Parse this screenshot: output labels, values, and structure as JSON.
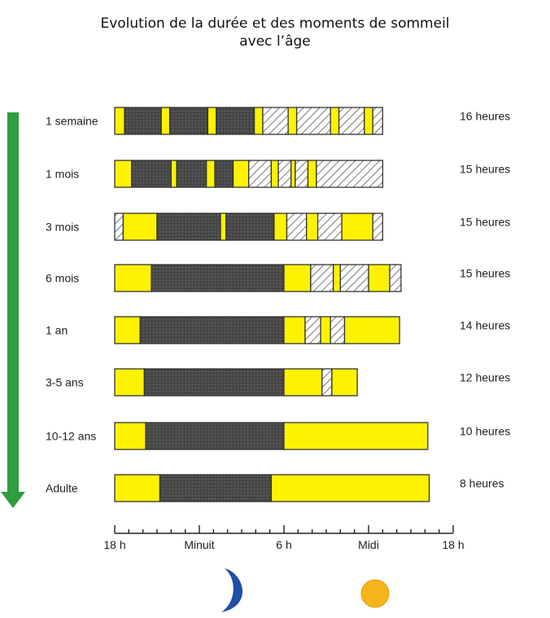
{
  "title": {
    "line1": "Evolution de la durée et des moments de sommeil",
    "line2": "avec l’âge"
  },
  "colors": {
    "night_sleep": "#4a4a4a",
    "awake": "#fff200",
    "nap": "hatched",
    "arrow": "#2e9e3e",
    "moon": "#1f4fa8",
    "sun": "#f6b31a"
  },
  "icons": {
    "moon": "moon-icon",
    "sun": "sun-icon"
  },
  "chart_data": {
    "type": "bar",
    "orientation": "horizontal-timeline",
    "x_axis": {
      "range_hours": [
        18,
        42
      ],
      "tick_labels": [
        {
          "at": 18,
          "label": "18 h"
        },
        {
          "at": 24,
          "label": "Minuit"
        },
        {
          "at": 30,
          "label": "6 h"
        },
        {
          "at": 36,
          "label": "Midi"
        },
        {
          "at": 42,
          "label": "18 h"
        }
      ],
      "minor_tick_every_hours": 1
    },
    "legend_states": [
      "sleep",
      "awake",
      "nap"
    ],
    "rows": [
      {
        "label": "1 semaine",
        "total": "16 heures",
        "segments": [
          {
            "s": "awake",
            "start": 18.0,
            "end": 18.7
          },
          {
            "s": "sleep",
            "start": 18.7,
            "end": 21.3
          },
          {
            "s": "awake",
            "start": 21.3,
            "end": 21.9
          },
          {
            "s": "sleep",
            "start": 21.9,
            "end": 24.6
          },
          {
            "s": "awake",
            "start": 24.6,
            "end": 25.2
          },
          {
            "s": "sleep",
            "start": 25.2,
            "end": 27.9
          },
          {
            "s": "awake",
            "start": 27.9,
            "end": 28.5
          },
          {
            "s": "nap",
            "start": 28.5,
            "end": 30.3
          },
          {
            "s": "awake",
            "start": 30.3,
            "end": 30.9
          },
          {
            "s": "nap",
            "start": 30.9,
            "end": 33.3
          },
          {
            "s": "awake",
            "start": 33.3,
            "end": 33.9
          },
          {
            "s": "nap",
            "start": 33.9,
            "end": 35.7
          },
          {
            "s": "awake",
            "start": 35.7,
            "end": 36.3
          },
          {
            "s": "nap",
            "start": 36.3,
            "end": 37.0
          }
        ]
      },
      {
        "label": "1 mois",
        "total": "15 heures",
        "segments": [
          {
            "s": "awake",
            "start": 18.0,
            "end": 19.2
          },
          {
            "s": "sleep",
            "start": 19.2,
            "end": 22.0
          },
          {
            "s": "awake",
            "start": 22.0,
            "end": 22.4
          },
          {
            "s": "sleep",
            "start": 22.4,
            "end": 24.5
          },
          {
            "s": "awake",
            "start": 24.5,
            "end": 25.1
          },
          {
            "s": "sleep",
            "start": 25.1,
            "end": 26.4
          },
          {
            "s": "awake",
            "start": 26.4,
            "end": 27.5
          },
          {
            "s": "nap",
            "start": 27.5,
            "end": 29.1
          },
          {
            "s": "awake",
            "start": 29.1,
            "end": 29.6
          },
          {
            "s": "nap",
            "start": 29.6,
            "end": 30.5
          },
          {
            "s": "awake",
            "start": 30.5,
            "end": 30.8
          },
          {
            "s": "nap",
            "start": 30.8,
            "end": 31.7
          },
          {
            "s": "awake",
            "start": 31.7,
            "end": 32.3
          },
          {
            "s": "nap",
            "start": 32.3,
            "end": 37.0
          }
        ]
      },
      {
        "label": "3 mois",
        "total": "15 heures",
        "segments": [
          {
            "s": "nap",
            "start": 18.0,
            "end": 18.6
          },
          {
            "s": "awake",
            "start": 18.6,
            "end": 21.0
          },
          {
            "s": "sleep",
            "start": 21.0,
            "end": 25.5
          },
          {
            "s": "awake",
            "start": 25.5,
            "end": 25.9
          },
          {
            "s": "sleep",
            "start": 25.9,
            "end": 29.3
          },
          {
            "s": "awake",
            "start": 29.3,
            "end": 30.2
          },
          {
            "s": "nap",
            "start": 30.2,
            "end": 31.6
          },
          {
            "s": "awake",
            "start": 31.6,
            "end": 32.4
          },
          {
            "s": "nap",
            "start": 32.4,
            "end": 34.1
          },
          {
            "s": "awake",
            "start": 34.1,
            "end": 36.3
          },
          {
            "s": "nap",
            "start": 36.3,
            "end": 37.0
          }
        ]
      },
      {
        "label": "6 mois",
        "total": "15 heures",
        "segments": [
          {
            "s": "awake",
            "start": 18.0,
            "end": 20.6
          },
          {
            "s": "sleep",
            "start": 20.6,
            "end": 30.0
          },
          {
            "s": "awake",
            "start": 30.0,
            "end": 31.9
          },
          {
            "s": "nap",
            "start": 31.9,
            "end": 33.5
          },
          {
            "s": "awake",
            "start": 33.5,
            "end": 34.0
          },
          {
            "s": "nap",
            "start": 34.0,
            "end": 36.0
          },
          {
            "s": "awake",
            "start": 36.0,
            "end": 37.5
          },
          {
            "s": "nap",
            "start": 37.5,
            "end": 38.3
          }
        ]
      },
      {
        "label": "1 an",
        "total": "14 heures",
        "segments": [
          {
            "s": "awake",
            "start": 18.0,
            "end": 19.8
          },
          {
            "s": "sleep",
            "start": 19.8,
            "end": 30.0
          },
          {
            "s": "awake",
            "start": 30.0,
            "end": 31.5
          },
          {
            "s": "nap",
            "start": 31.5,
            "end": 32.6
          },
          {
            "s": "awake",
            "start": 32.6,
            "end": 33.3
          },
          {
            "s": "nap",
            "start": 33.3,
            "end": 34.3
          },
          {
            "s": "awake",
            "start": 34.3,
            "end": 38.2
          }
        ]
      },
      {
        "label": "3-5 ans",
        "total": "12 heures",
        "segments": [
          {
            "s": "awake",
            "start": 18.0,
            "end": 20.1
          },
          {
            "s": "sleep",
            "start": 20.1,
            "end": 30.0
          },
          {
            "s": "awake",
            "start": 30.0,
            "end": 32.7
          },
          {
            "s": "nap",
            "start": 32.7,
            "end": 33.4
          },
          {
            "s": "awake",
            "start": 33.4,
            "end": 35.2
          }
        ]
      },
      {
        "label": "10-12 ans",
        "total": "10 heures",
        "segments": [
          {
            "s": "awake",
            "start": 18.0,
            "end": 20.2
          },
          {
            "s": "sleep",
            "start": 20.2,
            "end": 30.0
          },
          {
            "s": "awake",
            "start": 30.0,
            "end": 40.2
          }
        ]
      },
      {
        "label": "Adulte",
        "total": "8 heures",
        "segments": [
          {
            "s": "awake",
            "start": 18.0,
            "end": 21.2
          },
          {
            "s": "sleep",
            "start": 21.2,
            "end": 29.1
          },
          {
            "s": "awake",
            "start": 29.1,
            "end": 40.3
          }
        ]
      }
    ]
  }
}
